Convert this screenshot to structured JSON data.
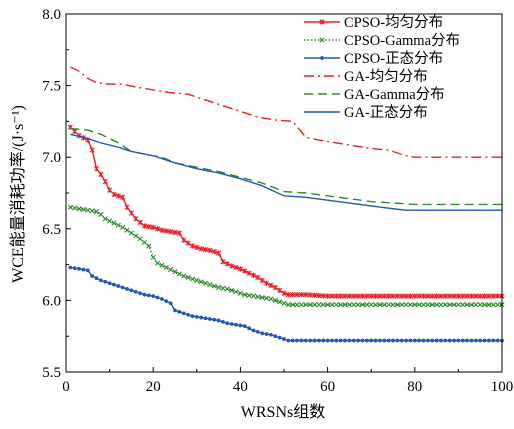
{
  "chart_data": {
    "type": "line",
    "xlabel": "WRSNs组数",
    "ylabel": "WCE能量消耗功率/(J·s⁻¹)",
    "xlim": [
      0,
      100
    ],
    "ylim": [
      5.5,
      8.0
    ],
    "x_ticks": [
      "0",
      "20",
      "40",
      "60",
      "80",
      "100"
    ],
    "y_ticks": [
      "5.5",
      "6.0",
      "6.5",
      "7.0",
      "7.5",
      "8.0"
    ],
    "grid": false,
    "legend_position": "top-right",
    "series": [
      {
        "name": "CPSO-均匀分布",
        "color": "#e8202a",
        "style": "solid-star",
        "points": [
          [
            1,
            7.21
          ],
          [
            3,
            7.15
          ],
          [
            5,
            7.12
          ],
          [
            6,
            7.05
          ],
          [
            7,
            6.92
          ],
          [
            8,
            6.88
          ],
          [
            9,
            6.83
          ],
          [
            10,
            6.77
          ],
          [
            11,
            6.74
          ],
          [
            13,
            6.72
          ],
          [
            14,
            6.65
          ],
          [
            16,
            6.57
          ],
          [
            18,
            6.52
          ],
          [
            20,
            6.51
          ],
          [
            22,
            6.49
          ],
          [
            24,
            6.48
          ],
          [
            26,
            6.47
          ],
          [
            27,
            6.42
          ],
          [
            29,
            6.38
          ],
          [
            31,
            6.36
          ],
          [
            33,
            6.35
          ],
          [
            35,
            6.33
          ],
          [
            36,
            6.27
          ],
          [
            38,
            6.24
          ],
          [
            40,
            6.22
          ],
          [
            42,
            6.19
          ],
          [
            44,
            6.16
          ],
          [
            46,
            6.12
          ],
          [
            48,
            6.09
          ],
          [
            50,
            6.05
          ],
          [
            51,
            6.04
          ],
          [
            55,
            6.04
          ],
          [
            60,
            6.03
          ],
          [
            70,
            6.03
          ],
          [
            80,
            6.03
          ],
          [
            90,
            6.03
          ],
          [
            100,
            6.03
          ]
        ]
      },
      {
        "name": "CPSO-Gamma分布",
        "color": "#2e8b2e",
        "style": "dotted-x",
        "points": [
          [
            1,
            6.65
          ],
          [
            3,
            6.64
          ],
          [
            5,
            6.63
          ],
          [
            7,
            6.62
          ],
          [
            8,
            6.6
          ],
          [
            9,
            6.57
          ],
          [
            11,
            6.54
          ],
          [
            13,
            6.51
          ],
          [
            15,
            6.47
          ],
          [
            17,
            6.43
          ],
          [
            19,
            6.38
          ],
          [
            20,
            6.3
          ],
          [
            21,
            6.26
          ],
          [
            23,
            6.23
          ],
          [
            25,
            6.2
          ],
          [
            27,
            6.17
          ],
          [
            29,
            6.15
          ],
          [
            31,
            6.13
          ],
          [
            33,
            6.11
          ],
          [
            35,
            6.09
          ],
          [
            37,
            6.08
          ],
          [
            39,
            6.06
          ],
          [
            41,
            6.04
          ],
          [
            43,
            6.03
          ],
          [
            45,
            6.02
          ],
          [
            47,
            6.01
          ],
          [
            49,
            5.99
          ],
          [
            51,
            5.97
          ],
          [
            55,
            5.97
          ],
          [
            60,
            5.97
          ],
          [
            70,
            5.97
          ],
          [
            80,
            5.97
          ],
          [
            90,
            5.97
          ],
          [
            100,
            5.97
          ]
        ]
      },
      {
        "name": "CPSO-正态分布",
        "color": "#2457b0",
        "style": "solid-dot",
        "points": [
          [
            1,
            6.23
          ],
          [
            3,
            6.22
          ],
          [
            5,
            6.21
          ],
          [
            6,
            6.17
          ],
          [
            8,
            6.14
          ],
          [
            10,
            6.12
          ],
          [
            12,
            6.1
          ],
          [
            14,
            6.08
          ],
          [
            16,
            6.06
          ],
          [
            18,
            6.04
          ],
          [
            20,
            6.03
          ],
          [
            22,
            6.01
          ],
          [
            24,
            5.98
          ],
          [
            25,
            5.93
          ],
          [
            27,
            5.91
          ],
          [
            29,
            5.89
          ],
          [
            31,
            5.88
          ],
          [
            33,
            5.87
          ],
          [
            35,
            5.86
          ],
          [
            37,
            5.84
          ],
          [
            39,
            5.83
          ],
          [
            41,
            5.82
          ],
          [
            43,
            5.79
          ],
          [
            45,
            5.77
          ],
          [
            47,
            5.76
          ],
          [
            49,
            5.74
          ],
          [
            51,
            5.72
          ],
          [
            55,
            5.72
          ],
          [
            60,
            5.72
          ],
          [
            70,
            5.72
          ],
          [
            80,
            5.72
          ],
          [
            90,
            5.72
          ],
          [
            100,
            5.72
          ]
        ]
      },
      {
        "name": "GA-均匀分布",
        "color": "#e8202a",
        "style": "dashdot",
        "points": [
          [
            1,
            7.63
          ],
          [
            3,
            7.6
          ],
          [
            5,
            7.55
          ],
          [
            7,
            7.52
          ],
          [
            10,
            7.51
          ],
          [
            13,
            7.51
          ],
          [
            16,
            7.49
          ],
          [
            20,
            7.47
          ],
          [
            24,
            7.45
          ],
          [
            28,
            7.44
          ],
          [
            32,
            7.4
          ],
          [
            36,
            7.36
          ],
          [
            40,
            7.32
          ],
          [
            44,
            7.28
          ],
          [
            48,
            7.26
          ],
          [
            52,
            7.25
          ],
          [
            55,
            7.14
          ],
          [
            58,
            7.12
          ],
          [
            62,
            7.1
          ],
          [
            66,
            7.08
          ],
          [
            70,
            7.06
          ],
          [
            74,
            7.05
          ],
          [
            78,
            7.01
          ],
          [
            80,
            7.0
          ],
          [
            90,
            7.0
          ],
          [
            100,
            7.0
          ]
        ]
      },
      {
        "name": "GA-Gamma分布",
        "color": "#2e8b2e",
        "style": "dashed",
        "points": [
          [
            1,
            7.2
          ],
          [
            5,
            7.19
          ],
          [
            8,
            7.16
          ],
          [
            12,
            7.1
          ],
          [
            15,
            7.04
          ],
          [
            20,
            7.01
          ],
          [
            22,
            7.0
          ],
          [
            25,
            6.96
          ],
          [
            30,
            6.93
          ],
          [
            35,
            6.9
          ],
          [
            40,
            6.86
          ],
          [
            45,
            6.82
          ],
          [
            50,
            6.76
          ],
          [
            55,
            6.75
          ],
          [
            60,
            6.73
          ],
          [
            65,
            6.71
          ],
          [
            70,
            6.69
          ],
          [
            75,
            6.68
          ],
          [
            80,
            6.67
          ],
          [
            90,
            6.67
          ],
          [
            100,
            6.67
          ]
        ]
      },
      {
        "name": "GA-正态分布",
        "color": "#2457b0",
        "style": "solid",
        "points": [
          [
            1,
            7.16
          ],
          [
            5,
            7.13
          ],
          [
            8,
            7.1
          ],
          [
            12,
            7.07
          ],
          [
            15,
            7.04
          ],
          [
            20,
            7.01
          ],
          [
            25,
            6.96
          ],
          [
            30,
            6.92
          ],
          [
            35,
            6.89
          ],
          [
            40,
            6.85
          ],
          [
            45,
            6.8
          ],
          [
            50,
            6.73
          ],
          [
            55,
            6.72
          ],
          [
            60,
            6.7
          ],
          [
            65,
            6.68
          ],
          [
            70,
            6.66
          ],
          [
            75,
            6.64
          ],
          [
            78,
            6.63
          ],
          [
            80,
            6.63
          ],
          [
            90,
            6.63
          ],
          [
            100,
            6.63
          ]
        ]
      }
    ]
  }
}
